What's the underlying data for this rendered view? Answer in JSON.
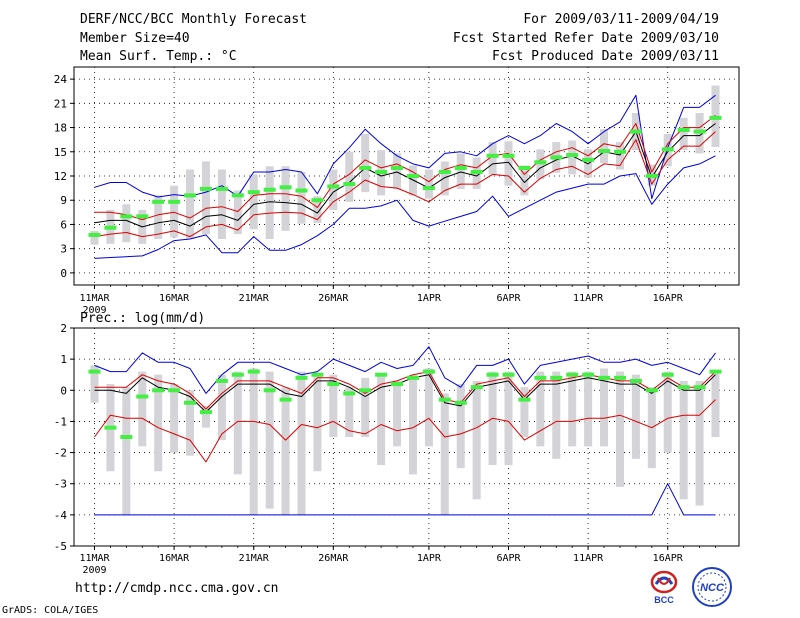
{
  "header": {
    "title": "DERF/NCC/BCC Monthly Forecast",
    "member_size": "Member Size=40",
    "variable": "Mean Surf. Temp.: °C",
    "period": "For 2009/03/11-2009/04/19",
    "started": "Fcst Started Refer Date 2009/03/10",
    "produced": "Fcst Produced Date 2009/03/11"
  },
  "footer": {
    "url": "http://cmdp.ncc.cma.gov.cn",
    "credit": "GrADS: COLA/IGES",
    "logo_left": "BCC",
    "logo_right": "NCC"
  },
  "colors": {
    "envelope": "#0000dd",
    "spread": "#dd0000",
    "mean": "#000000",
    "box": "#d3d3d8",
    "marker": "#44ee44"
  },
  "chart_data": [
    {
      "type": "line",
      "title": "Mean Surf. Temp.: °C",
      "xlabel": "",
      "ylabel": "",
      "x": [
        1,
        2,
        3,
        4,
        5,
        6,
        7,
        8,
        9,
        10,
        11,
        12,
        13,
        14,
        15,
        16,
        17,
        18,
        19,
        20,
        21,
        22,
        23,
        24,
        25,
        26,
        27,
        28,
        29,
        30,
        31,
        32,
        33,
        34,
        35,
        36,
        37,
        38,
        39,
        40
      ],
      "xticks": [
        {
          "day": 1,
          "label": "11MAR"
        },
        {
          "day": 6,
          "label": "16MAR"
        },
        {
          "day": 11,
          "label": "21MAR"
        },
        {
          "day": 16,
          "label": "26MAR"
        },
        {
          "day": 22,
          "label": "1APR"
        },
        {
          "day": 27,
          "label": "6APR"
        },
        {
          "day": 32,
          "label": "11APR"
        },
        {
          "day": 37,
          "label": "16APR"
        }
      ],
      "year_label": "2009",
      "ylim": [
        -1.5,
        25.5
      ],
      "yticks": [
        0,
        3,
        6,
        9,
        12,
        15,
        18,
        21,
        24
      ],
      "grid": true,
      "series": [
        {
          "name": "max",
          "style": "envelope",
          "values": [
            10.6,
            11.2,
            11.2,
            10,
            9.4,
            9.7,
            9.5,
            10,
            10.8,
            9.5,
            12.5,
            12.5,
            12.8,
            12.5,
            9.8,
            13.5,
            15.5,
            17.8,
            16,
            14.5,
            13.5,
            13,
            14.8,
            15,
            14.5,
            16,
            17,
            16,
            17,
            18.5,
            17.5,
            16,
            17.5,
            18.7,
            22,
            9.2,
            15.5,
            20.5,
            20.5,
            22
          ]
        },
        {
          "name": "upper",
          "style": "spread",
          "values": [
            7.5,
            7.5,
            7.2,
            6.6,
            7.2,
            7.5,
            6.8,
            8,
            8.2,
            7.6,
            9.6,
            9.8,
            9.8,
            9.5,
            8.1,
            11,
            12.2,
            14,
            13,
            13.5,
            12.5,
            11.3,
            12.8,
            13.4,
            13,
            14.5,
            14.8,
            12.2,
            14,
            15,
            15.5,
            14.5,
            16,
            15.6,
            18.5,
            12.5,
            16,
            18,
            18,
            19.5
          ]
        },
        {
          "name": "mean",
          "style": "mean",
          "values": [
            6.2,
            6.5,
            6.5,
            5.7,
            6.2,
            6.5,
            5.8,
            7,
            7.2,
            6.5,
            8.5,
            8.8,
            8.7,
            8.5,
            7.4,
            10,
            11.2,
            13,
            12,
            12.5,
            11.5,
            10.5,
            11.8,
            12.5,
            12,
            13.5,
            13.7,
            11.2,
            13,
            14,
            14.5,
            13.5,
            15,
            14.6,
            17.5,
            11.8,
            15,
            17,
            17,
            18.5
          ]
        },
        {
          "name": "lower",
          "style": "spread",
          "values": [
            4.5,
            4.8,
            5,
            4.5,
            4.8,
            5.2,
            4.5,
            5.7,
            6,
            5.3,
            7.2,
            7.4,
            7.5,
            7.4,
            6.6,
            8.8,
            10,
            11.5,
            10.7,
            10.5,
            9.7,
            8.8,
            10.2,
            11,
            11,
            12.2,
            12,
            10,
            11.7,
            12.8,
            13.2,
            12.2,
            13.5,
            13.3,
            16.5,
            11,
            14,
            15.7,
            15.7,
            17.5
          ]
        },
        {
          "name": "min",
          "style": "envelope",
          "values": [
            1.8,
            1.9,
            2,
            2.1,
            2.9,
            4,
            4.2,
            4.7,
            2.5,
            2.5,
            4.5,
            2.8,
            2.8,
            3.5,
            4.6,
            6,
            8,
            8,
            8.3,
            9,
            6.5,
            5.8,
            6.4,
            7,
            7.6,
            9.5,
            7,
            8,
            9,
            10,
            10.5,
            11,
            11,
            12,
            12.3,
            8.5,
            11,
            13,
            13.5,
            14.5
          ]
        },
        {
          "name": "observed-marker",
          "style": "marker",
          "values": [
            4.7,
            5.6,
            7,
            7,
            8.8,
            8.8,
            9.6,
            10.4,
            10.4,
            9.6,
            10,
            10.3,
            10.6,
            10.2,
            9,
            10.7,
            11,
            13,
            12.5,
            13,
            12,
            10.5,
            12.5,
            13,
            12.5,
            14.5,
            14.5,
            13,
            13.7,
            14.3,
            14.6,
            14,
            15.1,
            15,
            17.5,
            12,
            15.3,
            17.7,
            17.5,
            19.2
          ]
        }
      ],
      "boxes": [
        {
          "low": 3.5,
          "high": 5.2
        },
        {
          "low": 3.6,
          "high": 7.8
        },
        {
          "low": 3.8,
          "high": 8.5
        },
        {
          "low": 3.6,
          "high": 7.8
        },
        {
          "low": 4.2,
          "high": 9.6
        },
        {
          "low": 4.4,
          "high": 10.8
        },
        {
          "low": 4.2,
          "high": 12.8
        },
        {
          "low": 4.8,
          "high": 13.8
        },
        {
          "low": 4.2,
          "high": 12.8
        },
        {
          "low": 4.8,
          "high": 10.2
        },
        {
          "low": 5.4,
          "high": 12.2
        },
        {
          "low": 4.2,
          "high": 13.2
        },
        {
          "low": 5.2,
          "high": 13.2
        },
        {
          "low": 6.1,
          "high": 12.5
        },
        {
          "low": 6.2,
          "high": 9.5
        },
        {
          "low": 7.8,
          "high": 12.8
        },
        {
          "low": 8.8,
          "high": 15
        },
        {
          "low": 10,
          "high": 17.2
        },
        {
          "low": 9.6,
          "high": 15.2
        },
        {
          "low": 10.4,
          "high": 14.8
        },
        {
          "low": 9.6,
          "high": 13.3
        },
        {
          "low": 9.2,
          "high": 12.8
        },
        {
          "low": 9.6,
          "high": 13.8
        },
        {
          "low": 10.4,
          "high": 14.8
        },
        {
          "low": 10.4,
          "high": 14.3
        },
        {
          "low": 12.2,
          "high": 16.2
        },
        {
          "low": 10.8,
          "high": 16.3
        },
        {
          "low": 9.6,
          "high": 13.3
        },
        {
          "low": 11.6,
          "high": 15.3
        },
        {
          "low": 12.4,
          "high": 16.2
        },
        {
          "low": 12.2,
          "high": 16.4
        },
        {
          "low": 11.8,
          "high": 15.3
        },
        {
          "low": 13.6,
          "high": 17.8
        },
        {
          "low": 12.8,
          "high": 16.2
        },
        {
          "low": 15.2,
          "high": 19.8
        },
        {
          "low": 10.8,
          "high": 13.4
        },
        {
          "low": 13.2,
          "high": 17.2
        },
        {
          "low": 15.2,
          "high": 19.2
        },
        {
          "low": 14.8,
          "high": 19.8
        },
        {
          "low": 15.6,
          "high": 23.2
        }
      ]
    },
    {
      "type": "line",
      "title": "Prec.: log(mm/d)",
      "xlabel": "",
      "ylabel": "",
      "x": [
        1,
        2,
        3,
        4,
        5,
        6,
        7,
        8,
        9,
        10,
        11,
        12,
        13,
        14,
        15,
        16,
        17,
        18,
        19,
        20,
        21,
        22,
        23,
        24,
        25,
        26,
        27,
        28,
        29,
        30,
        31,
        32,
        33,
        34,
        35,
        36,
        37,
        38,
        39,
        40
      ],
      "xticks": [
        {
          "day": 1,
          "label": "11MAR"
        },
        {
          "day": 6,
          "label": "16MAR"
        },
        {
          "day": 11,
          "label": "21MAR"
        },
        {
          "day": 16,
          "label": "26MAR"
        },
        {
          "day": 22,
          "label": "1APR"
        },
        {
          "day": 27,
          "label": "6APR"
        },
        {
          "day": 32,
          "label": "11APR"
        },
        {
          "day": 37,
          "label": "16APR"
        }
      ],
      "year_label": "2009",
      "ylim": [
        -5,
        2
      ],
      "yticks": [
        -5,
        -4,
        -3,
        -2,
        -1,
        0,
        1,
        2
      ],
      "grid": true,
      "series": [
        {
          "name": "max",
          "style": "envelope",
          "values": [
            0.8,
            0.6,
            0.6,
            1.2,
            0.9,
            0.9,
            0.7,
            -0.1,
            0.5,
            0.9,
            0.9,
            0.9,
            0.7,
            0.5,
            0.6,
            1,
            0.8,
            0.6,
            0.9,
            0.7,
            0.8,
            1.4,
            0.4,
            0.1,
            0.8,
            0.8,
            1,
            0.2,
            0.8,
            0.9,
            1,
            1.1,
            0.9,
            0.9,
            1,
            0.8,
            0.9,
            0.7,
            0.5,
            1.2
          ]
        },
        {
          "name": "upper",
          "style": "spread",
          "values": [
            0.1,
            0.1,
            0.1,
            0.5,
            0.3,
            0.2,
            -0.1,
            -0.6,
            -0.1,
            0.3,
            0.3,
            0.3,
            0.1,
            -0.1,
            0.4,
            0.4,
            0.2,
            -0.1,
            0.2,
            0.3,
            0.5,
            0.6,
            -0.3,
            -0.4,
            0.2,
            0.3,
            0.4,
            -0.2,
            0.3,
            0.3,
            0.4,
            0.5,
            0.4,
            0.3,
            0.3,
            0,
            0.4,
            0.1,
            0.1,
            0.6
          ]
        },
        {
          "name": "mean",
          "style": "mean",
          "values": [
            0,
            0,
            -0.1,
            0.4,
            0.1,
            0,
            -0.2,
            -0.7,
            -0.2,
            0.2,
            0.2,
            0.2,
            -0.1,
            -0.2,
            0.3,
            0.3,
            0.1,
            -0.2,
            0.1,
            0.2,
            0.4,
            0.5,
            -0.4,
            -0.5,
            0.1,
            0.2,
            0.3,
            -0.3,
            0.2,
            0.2,
            0.3,
            0.4,
            0.3,
            0.2,
            0.2,
            -0.1,
            0.3,
            0,
            0,
            0.5
          ]
        },
        {
          "name": "lower",
          "style": "spread",
          "values": [
            -1.5,
            -0.8,
            -0.9,
            -0.9,
            -1.2,
            -1.4,
            -1.6,
            -2.3,
            -1.4,
            -1,
            -1,
            -1.1,
            -1.6,
            -1.1,
            -1.2,
            -1,
            -1.3,
            -1.4,
            -1.1,
            -1.3,
            -1.2,
            -0.9,
            -1.5,
            -1.4,
            -1.2,
            -0.9,
            -1,
            -1.6,
            -1.3,
            -1,
            -1,
            -0.9,
            -0.9,
            -0.8,
            -1,
            -1.2,
            -0.9,
            -0.8,
            -0.8,
            -0.3
          ]
        },
        {
          "name": "min",
          "style": "envelope",
          "values": [
            -4,
            -4,
            -4,
            -4,
            -4,
            -4,
            -4,
            -4,
            -4,
            -4,
            -4,
            -4,
            -4,
            -4,
            -4,
            -4,
            -4,
            -4,
            -4,
            -4,
            -4,
            -4,
            -4,
            -4,
            -4,
            -4,
            -4,
            -4,
            -4,
            -4,
            -4,
            -4,
            -4,
            -4,
            -4,
            -4,
            -3,
            -4,
            -4,
            -4
          ]
        },
        {
          "name": "observed-marker",
          "style": "marker",
          "values": [
            0.6,
            -1.2,
            -1.5,
            -0.2,
            0,
            0,
            -0.4,
            -0.7,
            0.3,
            0.5,
            0.6,
            0,
            -0.3,
            0.4,
            0.5,
            0.2,
            -0.1,
            0,
            0.5,
            0.2,
            0.4,
            0.6,
            -0.3,
            -0.4,
            0.1,
            0.5,
            0.5,
            -0.3,
            0.4,
            0.4,
            0.5,
            0.5,
            0.4,
            0.4,
            0.3,
            0,
            0.5,
            0.1,
            0.1,
            0.6
          ]
        }
      ],
      "boxes": [
        {
          "low": -0.4,
          "high": 0.8
        },
        {
          "low": -2.6,
          "high": 0.2
        },
        {
          "low": -4,
          "high": 0.1
        },
        {
          "low": -1.8,
          "high": 0.6
        },
        {
          "low": -2.6,
          "high": 0.5
        },
        {
          "low": -2,
          "high": 0.2
        },
        {
          "low": -2.1,
          "high": 0
        },
        {
          "low": -1.2,
          "high": -0.5
        },
        {
          "low": -1.6,
          "high": 0.5
        },
        {
          "low": -2.7,
          "high": 0.6
        },
        {
          "low": -4,
          "high": 0.7
        },
        {
          "low": -3.8,
          "high": 0.6
        },
        {
          "low": -4,
          "high": 0.1
        },
        {
          "low": -4,
          "high": 0.6
        },
        {
          "low": -2.6,
          "high": 0.5
        },
        {
          "low": -1.5,
          "high": 0.5
        },
        {
          "low": -1.5,
          "high": 0.1
        },
        {
          "low": -1.5,
          "high": 0.4
        },
        {
          "low": -2.4,
          "high": 0.5
        },
        {
          "low": -1.8,
          "high": 0.3
        },
        {
          "low": -2.7,
          "high": 0.5
        },
        {
          "low": -1.8,
          "high": 0.7
        },
        {
          "low": -4,
          "high": -0.1
        },
        {
          "low": -2.5,
          "high": 0.2
        },
        {
          "low": -3.5,
          "high": 0.3
        },
        {
          "low": -2.4,
          "high": 0.6
        },
        {
          "low": -2.4,
          "high": 0.6
        },
        {
          "low": -1.5,
          "high": 0.1
        },
        {
          "low": -1.8,
          "high": 0.6
        },
        {
          "low": -2.2,
          "high": 0.6
        },
        {
          "low": -1.8,
          "high": 0.6
        },
        {
          "low": -1.8,
          "high": 0.6
        },
        {
          "low": -1.8,
          "high": 0.7
        },
        {
          "low": -3.1,
          "high": 0.6
        },
        {
          "low": -2.2,
          "high": 0.5
        },
        {
          "low": -2.5,
          "high": 0.1
        },
        {
          "low": -2,
          "high": 0.6
        },
        {
          "low": -3.5,
          "high": 0.3
        },
        {
          "low": -3.7,
          "high": 0.3
        },
        {
          "low": -1.5,
          "high": 0.6
        }
      ]
    }
  ]
}
